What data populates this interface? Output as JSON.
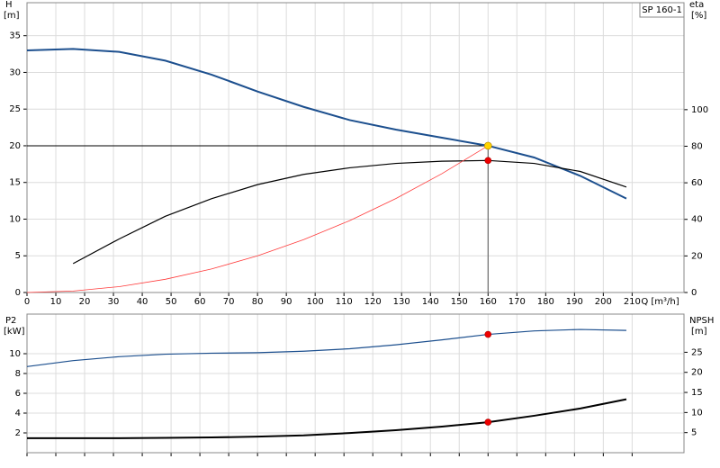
{
  "chart_data": [
    {
      "type": "line",
      "label": "SP 160-1",
      "ylabel": "H",
      "yunit": "[m]",
      "y2label": "eta",
      "y2unit": "[%]",
      "xlabel": "Q [m³/h]",
      "xlim": [
        0,
        228
      ],
      "xticks": [
        0,
        10,
        20,
        30,
        40,
        50,
        60,
        70,
        80,
        90,
        100,
        110,
        120,
        130,
        140,
        150,
        160,
        170,
        180,
        190,
        200,
        210
      ],
      "ylim": [
        0,
        39.5
      ],
      "yticks": [
        0,
        5,
        10,
        15,
        20,
        25,
        30,
        35
      ],
      "y2lim": [
        0,
        158.5
      ],
      "y2ticks": [
        0,
        20,
        40,
        60,
        80,
        100
      ],
      "grid": true,
      "series": [
        {
          "color": "#1c4f8e",
          "linewidth": 2,
          "x": [
            0,
            16,
            32,
            48,
            64,
            80,
            96,
            112,
            128,
            144,
            160,
            176,
            192,
            208
          ],
          "values": [
            33,
            33.2,
            32.8,
            31.6,
            29.7,
            27.4,
            25.3,
            23.5,
            22.2,
            21.1,
            20,
            18.4,
            15.9,
            12.8
          ]
        },
        {
          "color": "#000000",
          "linewidth": 1.2,
          "axis": "y2",
          "x": [
            16,
            32,
            48,
            64,
            80,
            96,
            112,
            128,
            144,
            160,
            176,
            192,
            208
          ],
          "values": [
            15.8,
            29.3,
            41.7,
            51.3,
            59,
            64.6,
            68.2,
            70.6,
            71.8,
            72.2,
            70.6,
            66.2,
            57.7
          ]
        },
        {
          "color": "#ff3b3b",
          "linewidth": 0.8,
          "x": [
            0,
            16,
            32,
            48,
            64,
            80,
            96,
            112,
            128,
            144,
            160
          ],
          "values": [
            0,
            0.2,
            0.8,
            1.8,
            3.2,
            5,
            7.2,
            9.8,
            12.8,
            16.2,
            20
          ]
        }
      ],
      "duty_point": {
        "x": 160,
        "y": 20,
        "color": "#ffd400"
      },
      "markers": [
        {
          "x": 160,
          "y": 72.2,
          "axis": "y2",
          "color": "#ee0000"
        }
      ]
    },
    {
      "type": "line",
      "ylabel": "P2",
      "yunit": "[kW]",
      "y2label": "NPSH",
      "y2unit": "[m]",
      "xlim": [
        0,
        228
      ],
      "xticks": [
        0,
        10,
        20,
        30,
        40,
        50,
        60,
        70,
        80,
        90,
        100,
        110,
        120,
        130,
        140,
        150,
        160,
        170,
        180,
        190,
        200,
        210
      ],
      "xtick_labels": false,
      "ylim": [
        0,
        14
      ],
      "yticks": [
        2,
        4,
        6,
        8,
        10
      ],
      "y2lim": [
        0,
        34.5
      ],
      "y2ticks": [
        5,
        10,
        15,
        20,
        25
      ],
      "grid": true,
      "series": [
        {
          "color": "#1c4f8e",
          "linewidth": 1.2,
          "x": [
            0,
            16,
            32,
            48,
            64,
            80,
            96,
            112,
            128,
            144,
            160,
            176,
            192,
            208
          ],
          "values": [
            8.7,
            9.3,
            9.7,
            9.95,
            10.05,
            10.1,
            10.25,
            10.5,
            10.9,
            11.4,
            11.95,
            12.3,
            12.45,
            12.35
          ]
        },
        {
          "color": "#000000",
          "linewidth": 2,
          "axis": "y2",
          "x": [
            0,
            16,
            32,
            48,
            64,
            80,
            96,
            112,
            128,
            144,
            160,
            176,
            192,
            208
          ],
          "values": [
            3.6,
            3.6,
            3.6,
            3.7,
            3.8,
            4,
            4.3,
            4.9,
            5.6,
            6.5,
            7.6,
            9.2,
            11,
            13.3
          ]
        }
      ],
      "markers": [
        {
          "x": 160,
          "y": 11.95,
          "color": "#ee0000"
        },
        {
          "x": 160,
          "y": 7.6,
          "axis": "y2",
          "color": "#ee0000"
        }
      ]
    }
  ]
}
